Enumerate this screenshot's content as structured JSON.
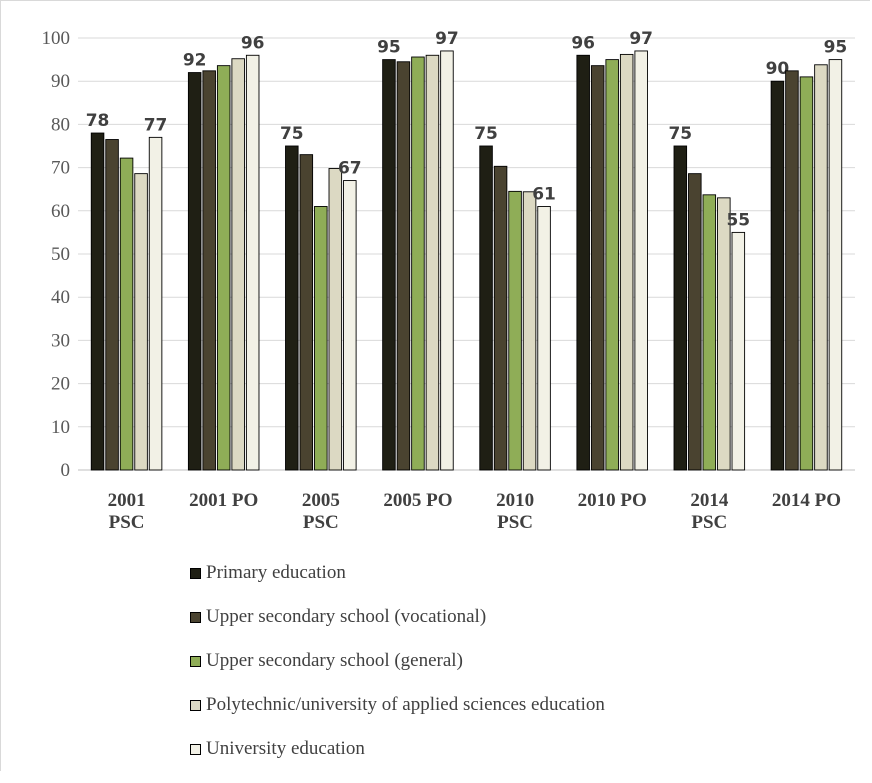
{
  "chart_data": {
    "type": "bar",
    "ylim": [
      0,
      100
    ],
    "yticks": [
      0,
      10,
      20,
      30,
      40,
      50,
      60,
      70,
      80,
      90,
      100
    ],
    "grid": true,
    "legend_position": "bottom",
    "categories": [
      [
        "2001",
        "PSC"
      ],
      [
        "2001 PO"
      ],
      [
        "2005",
        "PSC"
      ],
      [
        "2005 PO"
      ],
      [
        "2010",
        "PSC"
      ],
      [
        "2010 PO"
      ],
      [
        "2014",
        "PSC"
      ],
      [
        "2014 PO"
      ]
    ],
    "series": [
      {
        "name": "Primary education",
        "color": "#1f1f14",
        "values": [
          78,
          92,
          75,
          95,
          75,
          96,
          75,
          90
        ],
        "labels": [
          "78",
          "92",
          "75",
          "95",
          "75",
          "96",
          "75",
          "90"
        ]
      },
      {
        "name": "Upper secondary school (vocational)",
        "color": "#4a4330",
        "values": [
          76.5,
          92.4,
          73,
          94.5,
          70.3,
          93.6,
          68.6,
          92.4
        ],
        "labels": [
          "",
          "",
          "",
          "",
          "",
          "",
          "",
          ""
        ]
      },
      {
        "name": "Upper secondary school (general)",
        "color": "#8fad57",
        "values": [
          72.2,
          93.6,
          61,
          95.6,
          64.5,
          95,
          63.7,
          91
        ],
        "labels": [
          "",
          "",
          "",
          "",
          "",
          "",
          "",
          ""
        ]
      },
      {
        "name": "Polytechnic/university of applied sciences education",
        "color": "#dcd9c3",
        "values": [
          68.6,
          95.2,
          69.8,
          96,
          64.4,
          96.2,
          63,
          93.8
        ],
        "labels": [
          "",
          "",
          "",
          "",
          "",
          "",
          "",
          ""
        ]
      },
      {
        "name": "University education",
        "color": "#f2f1e6",
        "values": [
          77,
          96,
          67,
          97,
          61,
          97,
          55,
          95
        ],
        "labels": [
          "77",
          "96",
          "67",
          "97",
          "61",
          "97",
          "55",
          "95"
        ]
      }
    ]
  }
}
